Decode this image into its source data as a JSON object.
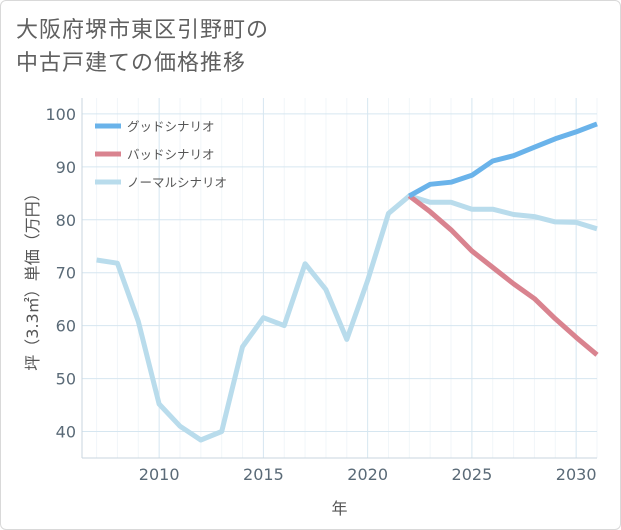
{
  "title": {
    "line1": "大阪府堺市東区引野町の",
    "line2": "中古戸建ての価格推移"
  },
  "chart_data": {
    "type": "line",
    "xlabel": "年",
    "ylabel": "坪（3.3㎡）単価（万円）",
    "xlim": [
      2006.3,
      2031
    ],
    "ylim": [
      35,
      103
    ],
    "xticks": [
      2010,
      2015,
      2020,
      2025,
      2030
    ],
    "yticks": [
      40,
      50,
      60,
      70,
      80,
      90,
      100
    ],
    "grid": true,
    "legend_position": "top-left",
    "series": [
      {
        "name": "グッドシナリオ",
        "color": "#6ab3ea",
        "x": [
          2022,
          2023,
          2024,
          2025,
          2026,
          2027,
          2028,
          2029,
          2030,
          2031
        ],
        "values": [
          84.5,
          86.7,
          87.1,
          88.4,
          91.1,
          92.1,
          93.7,
          95.3,
          96.6,
          98.1
        ]
      },
      {
        "name": "バッドシナリオ",
        "color": "#d9838f",
        "x": [
          2022,
          2023,
          2024,
          2025,
          2026,
          2027,
          2028,
          2029,
          2030,
          2031
        ],
        "values": [
          84.5,
          81.5,
          78.1,
          74.1,
          71.0,
          67.9,
          65.1,
          61.3,
          57.8,
          54.5
        ]
      },
      {
        "name": "ノーマルシナリオ",
        "color": "#b9dcec",
        "x": [
          2007,
          2008,
          2009,
          2010,
          2011,
          2012,
          2013,
          2014,
          2015,
          2016,
          2017,
          2018,
          2019,
          2020,
          2021,
          2022,
          2023,
          2024,
          2025,
          2026,
          2027,
          2028,
          2029,
          2030,
          2031
        ],
        "values": [
          72.4,
          71.8,
          60.8,
          45.2,
          41.0,
          38.4,
          40.0,
          56.0,
          61.5,
          60.0,
          71.7,
          66.8,
          57.4,
          68.5,
          81.2,
          84.5,
          83.3,
          83.3,
          82.0,
          82.0,
          81.0,
          80.6,
          79.6,
          79.5,
          78.3
        ]
      }
    ]
  }
}
